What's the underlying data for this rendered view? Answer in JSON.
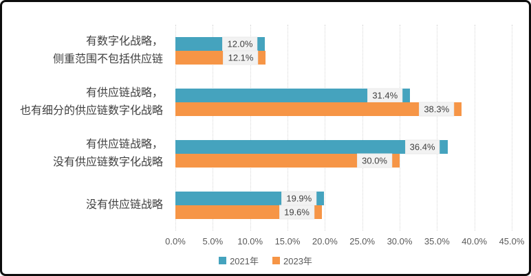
{
  "chart_data": {
    "type": "bar",
    "orientation": "horizontal",
    "title": "",
    "xlabel": "",
    "ylabel": "",
    "xlim": [
      0,
      45
    ],
    "grid": "vertical-dotted",
    "legend_position": "bottom-center",
    "categories": [
      {
        "lines": [
          "有数字化战略，",
          "侧重范围不包括供应链"
        ]
      },
      {
        "lines": [
          "有供应链战略，",
          "也有细分的供应链数字化战略"
        ]
      },
      {
        "lines": [
          "有供应链战略，",
          "没有供应链数字化战略"
        ]
      },
      {
        "lines": [
          "没有供应链战略"
        ]
      }
    ],
    "series": [
      {
        "name": "2021年",
        "color": "#45A3BE",
        "values": [
          12.0,
          31.4,
          36.4,
          19.9
        ],
        "labels": [
          "12.0%",
          "31.4%",
          "36.4%",
          "19.9%"
        ]
      },
      {
        "name": "2023年",
        "color": "#F69546",
        "values": [
          12.1,
          38.3,
          30.0,
          19.6
        ],
        "labels": [
          "12.1%",
          "38.3%",
          "30.0%",
          "19.6%"
        ]
      }
    ],
    "x_ticks": [
      "0.0%",
      "5.0%",
      "10.0%",
      "15.0%",
      "20.0%",
      "25.0%",
      "30.0%",
      "35.0%",
      "40.0%",
      "45.0%"
    ]
  },
  "colors": {
    "gridline": "#D6D6D6",
    "category_text": "#404040",
    "axis_text": "#595959",
    "data_label_text": "#404040",
    "data_label_bg": "#F2F2F2",
    "frame_border": "#0D0D0D"
  }
}
